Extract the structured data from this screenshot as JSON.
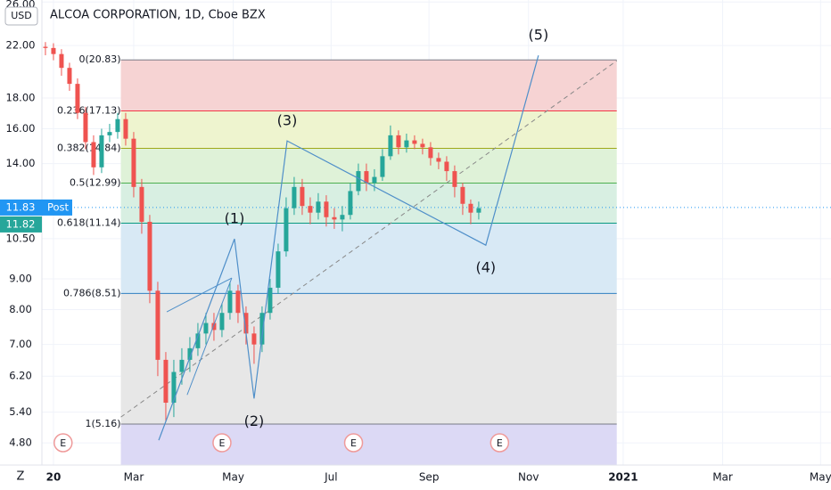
{
  "chart_data": {
    "type": "candlestick",
    "title": "ALCOA CORPORATION, 1D, Cboe BZX",
    "currency": "USD",
    "toolbar_label": "Z",
    "log_scale": true,
    "grid": true,
    "up_color": "#26a69a",
    "down_color": "#ef5350",
    "x": [
      -5,
      0,
      5,
      10,
      15,
      20,
      25,
      30,
      35,
      40,
      45,
      50,
      55,
      60,
      65,
      70,
      75,
      80,
      85,
      90,
      95,
      100,
      105,
      110,
      115,
      120,
      125,
      130,
      135,
      140,
      145,
      150,
      155,
      160,
      165,
      170,
      175,
      180,
      185,
      190,
      195,
      200,
      205,
      210,
      215,
      220,
      225,
      230,
      235,
      240,
      245,
      250,
      255,
      260,
      265
    ],
    "open": [
      21.9,
      21.8,
      21.3,
      20.2,
      19.0,
      17.0,
      15.2,
      13.8,
      15.6,
      15.8,
      16.6,
      15.4,
      12.8,
      11.2,
      8.6,
      6.6,
      5.6,
      6.3,
      6.6,
      6.9,
      7.3,
      7.6,
      7.4,
      7.9,
      8.6,
      7.9,
      7.3,
      7.0,
      7.9,
      8.7,
      10.0,
      11.8,
      12.8,
      11.9,
      11.6,
      12.1,
      11.4,
      11.3,
      11.5,
      12.6,
      13.6,
      13.0,
      13.3,
      14.4,
      15.6,
      14.9,
      15.3,
      15.1,
      14.9,
      14.3,
      14.1,
      13.6,
      12.8,
      12.0,
      11.6
    ],
    "high": [
      22.3,
      22.2,
      21.7,
      20.6,
      19.4,
      17.4,
      15.6,
      16.0,
      16.3,
      17.0,
      17.0,
      15.8,
      13.2,
      11.5,
      8.9,
      6.8,
      6.6,
      6.9,
      7.2,
      7.6,
      7.9,
      7.9,
      8.2,
      8.9,
      8.8,
      8.1,
      7.5,
      8.1,
      9.0,
      10.3,
      12.3,
      13.3,
      13.2,
      12.3,
      12.5,
      12.4,
      11.8,
      11.9,
      13.0,
      14.0,
      14.0,
      13.7,
      14.8,
      16.2,
      15.9,
      15.7,
      15.6,
      15.4,
      15.2,
      14.6,
      14.4,
      13.9,
      13.0,
      12.2,
      12.1
    ],
    "low": [
      21.2,
      20.8,
      19.6,
      18.5,
      16.6,
      14.8,
      13.4,
      13.5,
      15.2,
      15.4,
      15.0,
      12.3,
      10.7,
      8.2,
      6.2,
      5.2,
      5.3,
      6.0,
      6.3,
      6.7,
      7.0,
      7.1,
      7.2,
      7.7,
      7.6,
      7.0,
      6.5,
      6.8,
      7.7,
      8.5,
      9.8,
      11.5,
      11.5,
      11.1,
      11.3,
      11.0,
      10.9,
      10.8,
      11.3,
      12.4,
      12.6,
      12.6,
      13.1,
      14.2,
      14.5,
      14.6,
      14.8,
      14.5,
      13.9,
      13.7,
      13.1,
      12.3,
      11.5,
      11.1,
      11.3
    ],
    "close": [
      21.8,
      21.3,
      20.2,
      19.0,
      17.0,
      15.2,
      13.8,
      15.6,
      15.8,
      16.6,
      15.4,
      12.8,
      11.2,
      8.6,
      6.6,
      5.6,
      6.3,
      6.6,
      6.9,
      7.3,
      7.6,
      7.4,
      7.9,
      8.6,
      7.9,
      7.3,
      7.0,
      7.9,
      8.7,
      10.0,
      11.8,
      12.8,
      11.9,
      11.6,
      12.1,
      11.4,
      11.3,
      11.5,
      12.6,
      13.6,
      13.0,
      13.3,
      14.4,
      15.6,
      14.9,
      15.3,
      15.1,
      14.9,
      14.3,
      14.1,
      13.6,
      12.8,
      12.0,
      11.6,
      11.8
    ],
    "xlim": [
      -7.2,
      484.5
    ],
    "xticks": [
      {
        "value": 0,
        "label": "20"
      },
      {
        "value": 50,
        "label": "Mar"
      },
      {
        "value": 112,
        "label": "May"
      },
      {
        "value": 173,
        "label": "Jul"
      },
      {
        "value": 234,
        "label": "Sep"
      },
      {
        "value": 296,
        "label": "Nov"
      },
      {
        "value": 355,
        "label": "2021"
      },
      {
        "value": 417,
        "label": "Mar"
      },
      {
        "value": 478,
        "label": "May"
      }
    ],
    "ylim": [
      4.41,
      26.2
    ],
    "yticks": [
      {
        "value": 4.8,
        "label": "4.80"
      },
      {
        "value": 5.4,
        "label": "5.40"
      },
      {
        "value": 6.2,
        "label": "6.20"
      },
      {
        "value": 7,
        "label": "7.00"
      },
      {
        "value": 8,
        "label": "8.00"
      },
      {
        "value": 9,
        "label": "9.00"
      },
      {
        "value": 10.5,
        "label": "10.50"
      },
      {
        "value": 14,
        "label": "14.00"
      },
      {
        "value": 16,
        "label": "16.00"
      },
      {
        "value": 18,
        "label": "18.00"
      },
      {
        "value": 22,
        "label": "22.00"
      },
      {
        "value": 26,
        "label": "26.00"
      }
    ],
    "last_price": {
      "value": 11.83,
      "tag": "Post",
      "color": "#2196f3"
    },
    "close_price": {
      "value": 11.82,
      "color": "#26a69a"
    },
    "fib": {
      "x_start": 42,
      "x_end": 351,
      "levels": [
        {
          "label": "0(20.83)",
          "price": 20.83,
          "color": "#787b86",
          "fill": "#f6d3d3"
        },
        {
          "label": "0.236(17.13)",
          "price": 17.13,
          "color": "#f23645",
          "fill": "#eef4cf"
        },
        {
          "label": "0.382(14.84)",
          "price": 14.84,
          "color": "#9fa81a",
          "fill": "#dff2d8"
        },
        {
          "label": "0.5(12.99)",
          "price": 12.99,
          "color": "#4caf50",
          "fill": "#d8efe2"
        },
        {
          "label": "0.618(11.14)",
          "price": 11.14,
          "color": "#089981",
          "fill": "#d8e9f5"
        },
        {
          "label": "0.786(8.51)",
          "price": 8.51,
          "color": "#2f7fc1",
          "fill": "#e7e7e7"
        },
        {
          "label": "1(5.16)",
          "price": 5.16,
          "color": "#787b86",
          "fill": "#dcd9f5"
        }
      ]
    },
    "trendline": {
      "x": [
        42,
        351
      ],
      "y": [
        5.3,
        20.76
      ]
    },
    "waves": {
      "color": "#4f8fc9",
      "labels": [
        "(1)",
        "(2)",
        "(3)",
        "(4)",
        "(5)"
      ],
      "x": [
        65.6,
        112.8,
        125,
        145.6,
        269.4,
        302.2
      ],
      "y": [
        4.85,
        10.49,
        5.69,
        15.27,
        10.24,
        21.19
      ]
    },
    "wedge": [
      {
        "x": [
          70.6,
          111.1
        ],
        "y": [
          7.93,
          9.03
        ]
      },
      {
        "x": [
          83.3,
          111.1
        ],
        "y": [
          5.77,
          9.03
        ]
      }
    ],
    "earnings": {
      "label": "E",
      "x": [
        6,
        105,
        187,
        278
      ]
    }
  }
}
